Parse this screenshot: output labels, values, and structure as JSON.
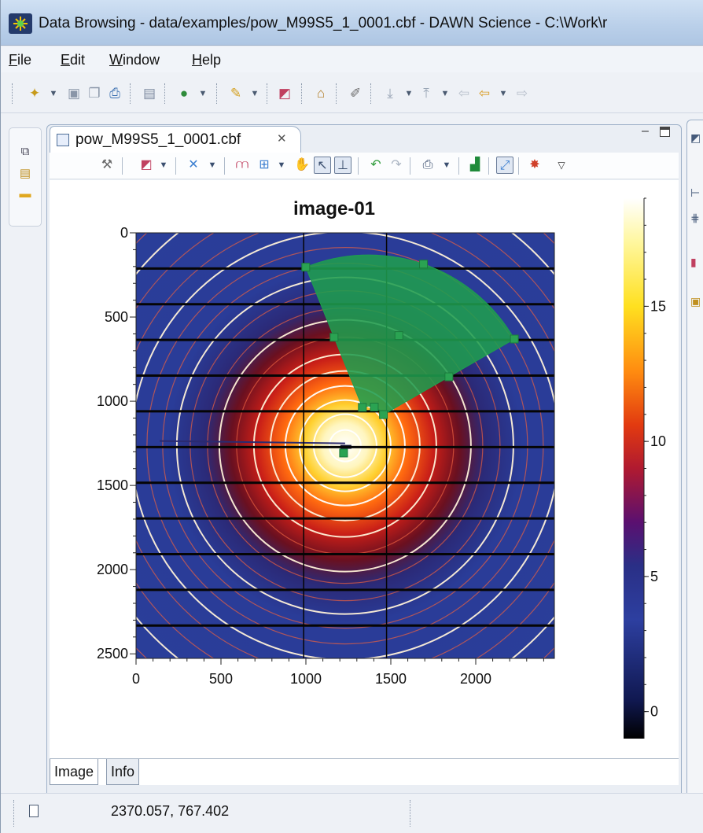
{
  "window": {
    "title": "Data Browsing - data/examples/pow_M99S5_1_0001.cbf - DAWN Science - C:\\Work\\r"
  },
  "menu": {
    "file": {
      "accel": "F",
      "rest": "ile"
    },
    "edit": {
      "accel": "E",
      "rest": "dit"
    },
    "window": {
      "accel": "W",
      "rest": "indow"
    },
    "help": {
      "accel": "H",
      "rest": "elp"
    }
  },
  "editor": {
    "tab_label": "pow_M99S5_1_0001.cbf",
    "close_glyph": "✕",
    "minimize_glyph": "–"
  },
  "plot": {
    "title": "image-01",
    "colormap": "hot-blue",
    "roi_color": "#1f9d4f"
  },
  "chart_data": {
    "type": "heatmap",
    "title": "image-01",
    "xlabel": "",
    "ylabel": "",
    "xlim": [
      0,
      2463
    ],
    "ylim": [
      2527,
      0
    ],
    "x_ticks": [
      "0",
      "500",
      "1000",
      "1500",
      "2000"
    ],
    "y_ticks": [
      "0",
      "500",
      "1000",
      "1500",
      "2000",
      "2500"
    ],
    "colorbar": {
      "range": [
        -1,
        19
      ],
      "ticks": [
        "0",
        "5",
        "10",
        "15"
      ]
    },
    "beam_center": {
      "x": 1231,
      "y": 1264
    },
    "module_gaps_y": [
      212,
      424,
      636,
      848,
      1060,
      1272,
      1484,
      1696,
      1908,
      2120,
      2332
    ],
    "module_gaps_x": [
      987,
      1475
    ],
    "sector_roi": {
      "center": {
        "x": 1370,
        "y": 1130
      },
      "inner_radius": 100,
      "outer_radius": 990,
      "start_angle_deg": -112,
      "end_angle_deg": -30
    }
  },
  "bottom_tabs": [
    "Image",
    "Info"
  ],
  "status": {
    "coords": "2370.057, 767.402"
  }
}
